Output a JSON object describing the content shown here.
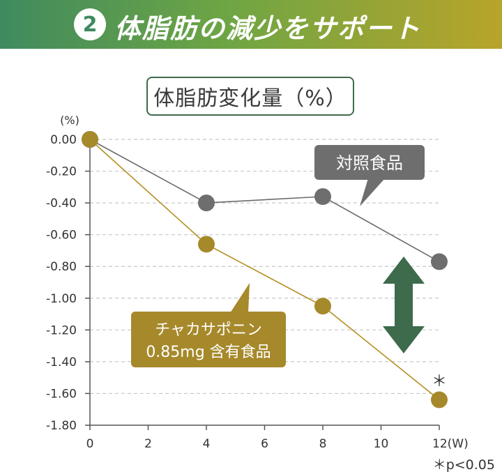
{
  "banner": {
    "number": "2",
    "title": "体脂肪の減少をサポート"
  },
  "chart_data": {
    "type": "line",
    "title": "体脂肪変化量（%）",
    "ylabel": "(%)",
    "x": [
      0,
      4,
      8,
      12
    ],
    "x_ticks": [
      "0",
      "2",
      "4",
      "6",
      "8",
      "10",
      "12(W)"
    ],
    "y_ticks": [
      "0.00",
      "-0.20",
      "-0.40",
      "-0.60",
      "-0.80",
      "-1.00",
      "-1.20",
      "-1.40",
      "-1.60",
      "-1.80"
    ],
    "ylim": [
      -1.8,
      0
    ],
    "xlim": [
      0,
      12
    ],
    "grid": true,
    "series": [
      {
        "name": "対照食品",
        "values": [
          0.0,
          -0.4,
          -0.36,
          -0.77
        ],
        "color": "#6e6e6e",
        "line_color": "#6b6b6b"
      },
      {
        "name": "チャカサポニン 0.85mg 含有食品",
        "values": [
          0.0,
          -0.66,
          -1.05,
          -1.64
        ],
        "color": "#a6892b",
        "line_color": "#b38f22"
      }
    ],
    "annotations": {
      "control_label": "対照食品",
      "test_label_line1": "チャカサポニン",
      "test_label_line2": "0.85mg 含有食品",
      "significance_mark": "＊"
    }
  },
  "footnote": "＊p<0.05",
  "colors": {
    "arrow": "#3d6b4c",
    "axis": "#555555",
    "grid": "#c8c8c8"
  }
}
